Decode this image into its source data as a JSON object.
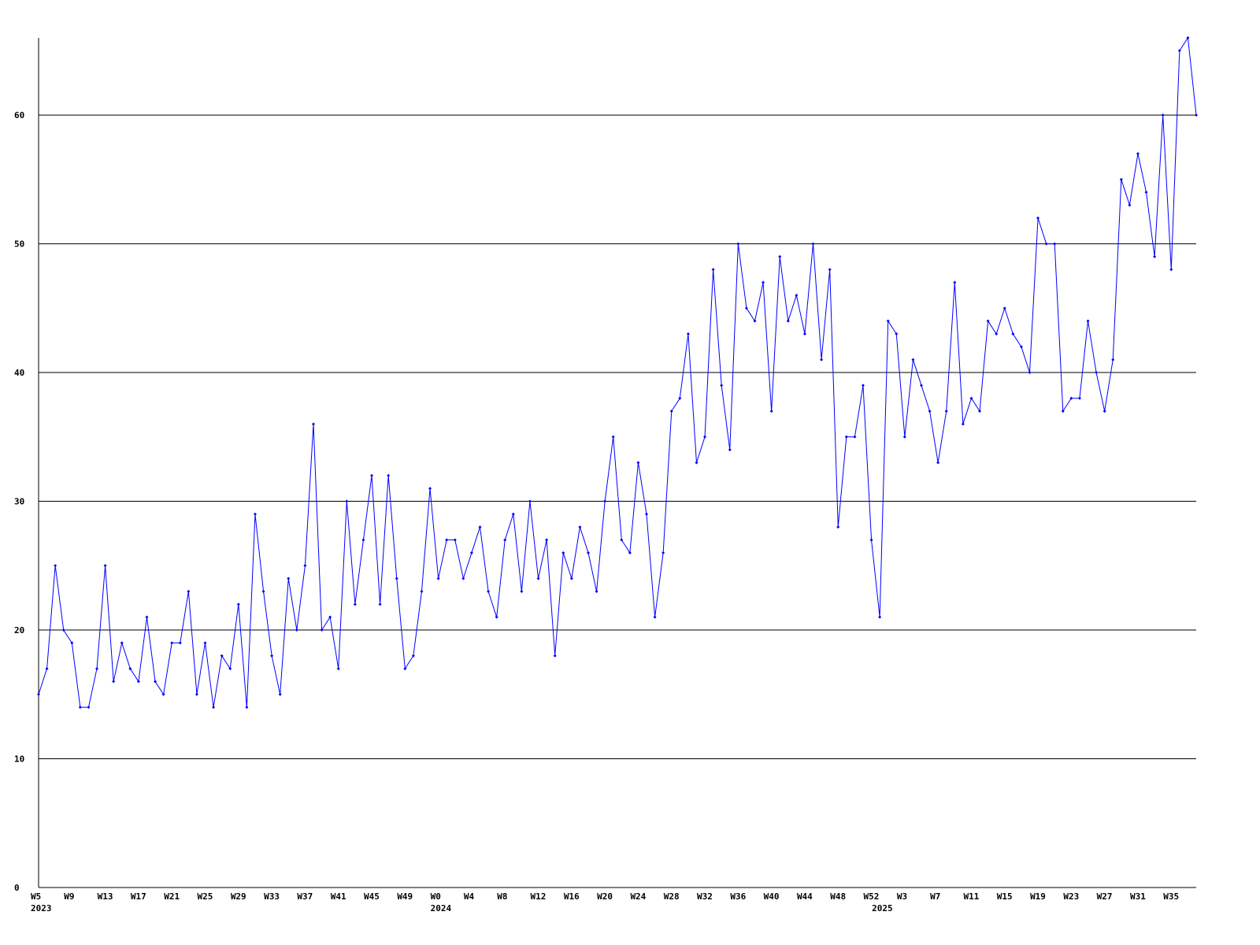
{
  "chart_data": {
    "type": "line",
    "categories": [
      "W5",
      null,
      null,
      null,
      "W9",
      null,
      null,
      null,
      "W13",
      null,
      null,
      null,
      "W17",
      null,
      null,
      null,
      "W21",
      null,
      null,
      null,
      "W25",
      null,
      null,
      null,
      "W29",
      null,
      null,
      null,
      "W33",
      null,
      null,
      null,
      "W37",
      null,
      null,
      null,
      "W41",
      null,
      null,
      null,
      "W45",
      null,
      null,
      null,
      "W49",
      null,
      null,
      null,
      "W0",
      null,
      null,
      null,
      "W4",
      null,
      null,
      null,
      "W8",
      null,
      null,
      null,
      "W12",
      null,
      null,
      null,
      "W16",
      null,
      null,
      null,
      "W20",
      null,
      null,
      null,
      "W24",
      null,
      null,
      null,
      "W28",
      null,
      null,
      null,
      "W32",
      null,
      null,
      null,
      "W36",
      null,
      null,
      null,
      "W40",
      null,
      null,
      null,
      "W44",
      null,
      null,
      null,
      "W48",
      null,
      null,
      null,
      "W52",
      null,
      null,
      null,
      "W3",
      null,
      null,
      null,
      "W7",
      null,
      null,
      null,
      "W11",
      null,
      null,
      null,
      "W15",
      null,
      null,
      null,
      "W19",
      null,
      null,
      null,
      "W23",
      null,
      null,
      null,
      "W27",
      null,
      null,
      null,
      "W31",
      null,
      null,
      null,
      "W35",
      null,
      null,
      null
    ],
    "category_years": [
      "2023",
      null,
      null,
      null,
      null,
      null,
      null,
      null,
      null,
      null,
      null,
      null,
      null,
      null,
      null,
      null,
      null,
      null,
      null,
      null,
      null,
      null,
      null,
      null,
      null,
      null,
      null,
      null,
      null,
      null,
      null,
      null,
      null,
      null,
      null,
      null,
      null,
      null,
      null,
      null,
      null,
      null,
      null,
      null,
      null,
      null,
      null,
      null,
      "2024",
      null,
      null,
      null,
      null,
      null,
      null,
      null,
      null,
      null,
      null,
      null,
      null,
      null,
      null,
      null,
      null,
      null,
      null,
      null,
      null,
      null,
      null,
      null,
      null,
      null,
      null,
      null,
      null,
      null,
      null,
      null,
      null,
      null,
      null,
      null,
      null,
      null,
      null,
      null,
      null,
      null,
      null,
      null,
      null,
      null,
      null,
      null,
      null,
      null,
      null,
      null,
      null,
      "2025",
      null,
      null,
      null,
      null,
      null,
      null,
      null,
      null,
      null,
      null,
      null,
      null,
      null,
      null,
      null,
      null,
      null,
      null,
      null,
      null,
      null,
      null,
      null,
      null,
      null,
      null,
      null,
      null,
      null,
      null,
      null,
      null,
      null,
      null,
      null,
      null,
      null
    ],
    "series": [
      {
        "color": "#0000ff",
        "values": [
          15,
          17,
          25,
          20,
          19,
          14,
          14,
          17,
          25,
          16,
          19,
          17,
          16,
          21,
          16,
          15,
          19,
          19,
          23,
          15,
          19,
          14,
          18,
          17,
          22,
          14,
          29,
          23,
          18,
          15,
          24,
          20,
          25,
          36,
          20,
          21,
          17,
          30,
          22,
          27,
          32,
          22,
          32,
          24,
          17,
          18,
          23,
          31,
          24,
          27,
          27,
          24,
          26,
          28,
          23,
          21,
          27,
          29,
          23,
          30,
          24,
          27,
          18,
          26,
          24,
          28,
          26,
          23,
          30,
          35,
          27,
          26,
          33,
          29,
          21,
          26,
          37,
          38,
          43,
          33,
          35,
          48,
          39,
          34,
          50,
          45,
          44,
          47,
          37,
          49,
          44,
          46,
          43,
          50,
          41,
          48,
          28,
          35,
          35,
          39,
          27,
          21,
          44,
          43,
          35,
          41,
          39,
          37,
          33,
          37,
          47,
          36,
          38,
          37,
          44,
          43,
          45,
          43,
          42,
          40,
          52,
          50,
          50,
          37,
          38,
          38,
          44,
          40,
          37,
          41,
          55,
          53,
          57,
          54,
          49,
          60,
          48,
          65,
          66,
          60
        ]
      }
    ],
    "ylim": [
      0,
      66
    ],
    "yticks": [
      0,
      10,
      20,
      30,
      40,
      50,
      60
    ],
    "grid": true
  }
}
